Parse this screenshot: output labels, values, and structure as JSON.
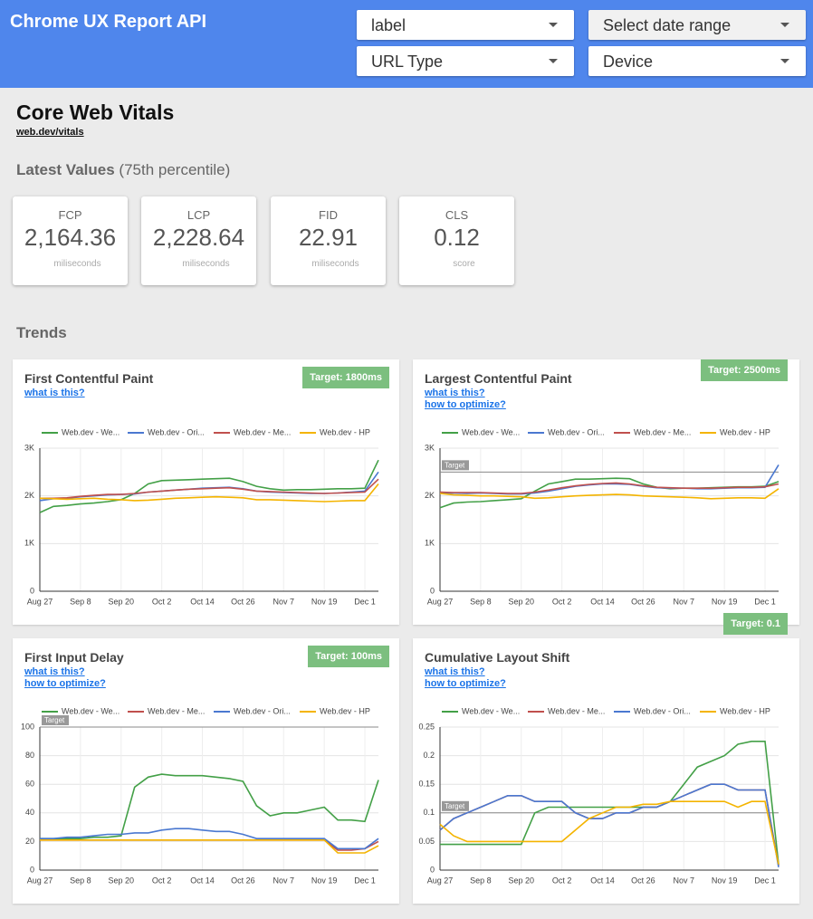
{
  "header": {
    "title": "Chrome UX Report API",
    "filters": [
      "label",
      "Select date range",
      "URL Type",
      "Device"
    ]
  },
  "page": {
    "title": "Core Web Vitals",
    "link": "web.dev/vitals",
    "latest_title": "Latest Values",
    "latest_note": "(75th percentile)",
    "trends_title": "Trends"
  },
  "metrics": [
    {
      "label": "FCP",
      "value": "2,164.36",
      "unit": "miliseconds"
    },
    {
      "label": "LCP",
      "value": "2,228.64",
      "unit": "miliseconds"
    },
    {
      "label": "FID",
      "value": "22.91",
      "unit": "miliseconds"
    },
    {
      "label": "CLS",
      "value": "0.12",
      "unit": "score"
    }
  ],
  "chart_data": [
    {
      "type": "line",
      "title": "First Contentful Paint",
      "links": [
        "what is this?"
      ],
      "badge": "Target: 1800ms",
      "grid": true,
      "categories": [
        "Aug 27",
        null,
        null,
        "Sep 8",
        null,
        null,
        "Sep 20",
        null,
        null,
        "Oct 2",
        null,
        null,
        "Oct 14",
        null,
        null,
        "Oct 26",
        null,
        null,
        "Nov 7",
        null,
        null,
        "Nov 19",
        null,
        null,
        "Dec 1",
        null
      ],
      "ylim": [
        0,
        3000
      ],
      "yticks": [
        0,
        {
          "value": 1000,
          "label": "1K"
        },
        {
          "value": 2000,
          "label": "2K"
        },
        {
          "value": 3000,
          "label": "3K"
        }
      ],
      "series": [
        {
          "name": "Web.dev - We...",
          "color": "#43a047",
          "values": [
            1650,
            1780,
            1800,
            1830,
            1850,
            1880,
            1920,
            2050,
            2250,
            2320,
            2330,
            2340,
            2350,
            2360,
            2370,
            2300,
            2200,
            2150,
            2120,
            2130,
            2130,
            2140,
            2150,
            2150,
            2160,
            2750
          ]
        },
        {
          "name": "Web.dev - Ori...",
          "color": "#4a78d0",
          "values": [
            1900,
            1940,
            1950,
            1980,
            2000,
            2020,
            2030,
            2040,
            2080,
            2100,
            2120,
            2140,
            2160,
            2170,
            2180,
            2150,
            2100,
            2080,
            2070,
            2060,
            2050,
            2050,
            2060,
            2080,
            2100,
            2500
          ]
        },
        {
          "name": "Web.dev - Me...",
          "color": "#c0504d",
          "values": [
            1950,
            1950,
            1960,
            1990,
            2010,
            2030,
            2030,
            2050,
            2080,
            2100,
            2120,
            2140,
            2150,
            2160,
            2170,
            2140,
            2100,
            2090,
            2080,
            2070,
            2060,
            2050,
            2060,
            2070,
            2080,
            2350
          ]
        },
        {
          "name": "Web.dev - HP",
          "color": "#f4b400",
          "values": [
            1950,
            1940,
            1930,
            1940,
            1950,
            1930,
            1920,
            1900,
            1910,
            1930,
            1950,
            1960,
            1970,
            1980,
            1970,
            1960,
            1920,
            1920,
            1910,
            1900,
            1890,
            1880,
            1890,
            1900,
            1900,
            2250
          ]
        }
      ]
    },
    {
      "type": "line",
      "title": "Largest Contentful Paint",
      "links": [
        "what is this?",
        "how to optimize?"
      ],
      "badge": "Target: 2500ms",
      "grid": true,
      "categories": [
        "Aug 27",
        null,
        null,
        "Sep 8",
        null,
        null,
        "Sep 20",
        null,
        null,
        "Oct 2",
        null,
        null,
        "Oct 14",
        null,
        null,
        "Oct 26",
        null,
        null,
        "Nov 7",
        null,
        null,
        "Nov 19",
        null,
        null,
        "Dec 1",
        null
      ],
      "ylim": [
        0,
        3000
      ],
      "yticks": [
        0,
        {
          "value": 1000,
          "label": "1K"
        },
        {
          "value": 2000,
          "label": "2K"
        },
        {
          "value": 3000,
          "label": "3K"
        }
      ],
      "target": {
        "value": 2500,
        "label": "Target"
      },
      "series": [
        {
          "name": "Web.dev - We...",
          "color": "#43a047",
          "values": [
            1750,
            1850,
            1870,
            1880,
            1900,
            1920,
            1940,
            2100,
            2250,
            2300,
            2350,
            2350,
            2360,
            2370,
            2360,
            2250,
            2180,
            2150,
            2160,
            2160,
            2170,
            2180,
            2190,
            2190,
            2200,
            2300
          ]
        },
        {
          "name": "Web.dev - Ori...",
          "color": "#4a78d0",
          "values": [
            2050,
            2060,
            2050,
            2060,
            2050,
            2040,
            2040,
            2060,
            2100,
            2150,
            2200,
            2230,
            2250,
            2250,
            2240,
            2200,
            2170,
            2160,
            2160,
            2150,
            2150,
            2160,
            2170,
            2170,
            2180,
            2650
          ]
        },
        {
          "name": "Web.dev - Me...",
          "color": "#c0504d",
          "values": [
            2080,
            2070,
            2070,
            2070,
            2060,
            2050,
            2050,
            2080,
            2120,
            2170,
            2210,
            2240,
            2260,
            2270,
            2250,
            2210,
            2180,
            2170,
            2160,
            2160,
            2160,
            2170,
            2180,
            2180,
            2190,
            2250
          ]
        },
        {
          "name": "Web.dev - HP",
          "color": "#f4b400",
          "values": [
            2050,
            2020,
            2010,
            2000,
            2000,
            1990,
            1980,
            1950,
            1960,
            1980,
            2000,
            2010,
            2020,
            2030,
            2020,
            2000,
            1990,
            1980,
            1970,
            1960,
            1940,
            1950,
            1960,
            1960,
            1950,
            2150
          ]
        }
      ]
    },
    {
      "type": "line",
      "title": "First Input Delay",
      "links": [
        "what is this?",
        "how to optimize?"
      ],
      "badge": "Target: 100ms",
      "grid": true,
      "categories": [
        "Aug 27",
        null,
        null,
        "Sep 8",
        null,
        null,
        "Sep 20",
        null,
        null,
        "Oct 2",
        null,
        null,
        "Oct 14",
        null,
        null,
        "Oct 26",
        null,
        null,
        "Nov 7",
        null,
        null,
        "Nov 19",
        null,
        null,
        "Dec 1",
        null
      ],
      "ylim": [
        0,
        100
      ],
      "yticks": [
        0,
        20,
        40,
        60,
        80,
        100
      ],
      "target": {
        "value": 100,
        "label": "Target"
      },
      "series": [
        {
          "name": "Web.dev - We...",
          "color": "#43a047",
          "values": [
            22,
            22,
            22,
            22,
            23,
            23,
            24,
            58,
            65,
            67,
            66,
            66,
            66,
            65,
            64,
            62,
            45,
            38,
            40,
            40,
            42,
            44,
            35,
            35,
            34,
            63
          ]
        },
        {
          "name": "Web.dev - Me...",
          "color": "#c0504d",
          "values": [
            21,
            21,
            21,
            21,
            21,
            21,
            21,
            21,
            21,
            21,
            21,
            21,
            21,
            21,
            21,
            21,
            21,
            21,
            21,
            21,
            21,
            21,
            14,
            14,
            15,
            20
          ]
        },
        {
          "name": "Web.dev - Ori...",
          "color": "#4a78d0",
          "values": [
            22,
            22,
            23,
            23,
            24,
            25,
            25,
            26,
            26,
            28,
            29,
            29,
            28,
            27,
            27,
            25,
            22,
            22,
            22,
            22,
            22,
            22,
            15,
            15,
            15,
            22
          ]
        },
        {
          "name": "Web.dev - HP",
          "color": "#f4b400",
          "values": [
            21,
            21,
            21,
            21,
            21,
            21,
            21,
            21,
            21,
            21,
            21,
            21,
            21,
            21,
            21,
            21,
            21,
            21,
            21,
            21,
            21,
            21,
            12,
            12,
            12,
            17
          ]
        }
      ]
    },
    {
      "type": "line",
      "title": "Cumulative Layout Shift",
      "links": [
        "what is this?",
        "how to optimize?"
      ],
      "badge": "Target: 0.1",
      "grid": true,
      "categories": [
        "Aug 27",
        null,
        null,
        "Sep 8",
        null,
        null,
        "Sep 20",
        null,
        null,
        "Oct 2",
        null,
        null,
        "Oct 14",
        null,
        null,
        "Oct 26",
        null,
        null,
        "Nov 7",
        null,
        null,
        "Nov 19",
        null,
        null,
        "Dec 1",
        null
      ],
      "ylim": [
        0,
        0.25
      ],
      "yticks": [
        0,
        0.05,
        0.1,
        0.15,
        0.2,
        0.25
      ],
      "target": {
        "value": 0.1,
        "label": "Target"
      },
      "series": [
        {
          "name": "Web.dev - We...",
          "color": "#43a047",
          "values": [
            0.045,
            0.045,
            0.045,
            0.045,
            0.045,
            0.045,
            0.045,
            0.1,
            0.11,
            0.11,
            0.11,
            0.11,
            0.11,
            0.11,
            0.11,
            0.11,
            0.11,
            0.12,
            0.15,
            0.18,
            0.19,
            0.2,
            0.22,
            0.225,
            0.225,
            0.01
          ]
        },
        {
          "name": "Web.dev - Me...",
          "color": "#c0504d",
          "values": [
            0.07,
            0.09,
            0.1,
            0.11,
            0.12,
            0.13,
            0.13,
            0.12,
            0.12,
            0.12,
            0.1,
            0.09,
            0.09,
            0.1,
            0.1,
            0.11,
            0.11,
            0.12,
            0.13,
            0.14,
            0.15,
            0.15,
            0.14,
            0.14,
            0.14,
            0.008
          ]
        },
        {
          "name": "Web.dev - Ori...",
          "color": "#4a78d0",
          "values": [
            0.07,
            0.09,
            0.1,
            0.11,
            0.12,
            0.13,
            0.13,
            0.12,
            0.12,
            0.12,
            0.1,
            0.09,
            0.09,
            0.1,
            0.1,
            0.11,
            0.11,
            0.12,
            0.13,
            0.14,
            0.15,
            0.15,
            0.14,
            0.14,
            0.14,
            0.005
          ]
        },
        {
          "name": "Web.dev - HP",
          "color": "#f4b400",
          "values": [
            0.08,
            0.06,
            0.05,
            0.05,
            0.05,
            0.05,
            0.05,
            0.05,
            0.05,
            0.05,
            0.07,
            0.09,
            0.1,
            0.11,
            0.11,
            0.115,
            0.115,
            0.12,
            0.12,
            0.12,
            0.12,
            0.12,
            0.11,
            0.12,
            0.12,
            0.01
          ]
        }
      ]
    }
  ]
}
